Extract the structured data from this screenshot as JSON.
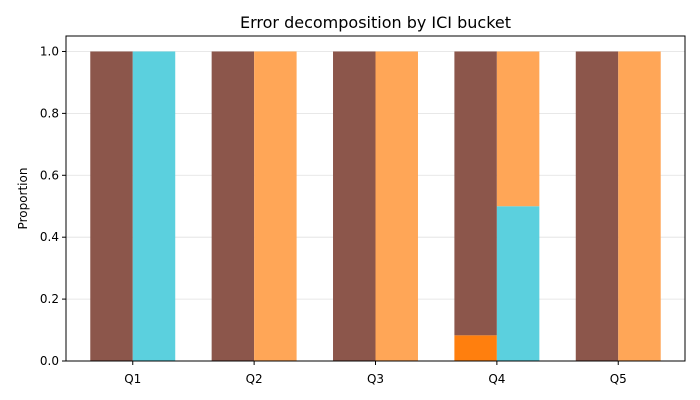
{
  "chart_data": {
    "type": "bar",
    "stacked": true,
    "title": "Error decomposition by ICI bucket",
    "xlabel": "",
    "ylabel": "Proportion",
    "categories": [
      "Q1",
      "Q2",
      "Q3",
      "Q4",
      "Q5"
    ],
    "ylim": [
      0,
      1.05
    ],
    "yticks": [
      0.0,
      0.2,
      0.4,
      0.6,
      0.8,
      1.0
    ],
    "ytick_labels": [
      "0.0",
      "0.2",
      "0.4",
      "0.6",
      "0.8",
      "1.0"
    ],
    "grid": true,
    "legend": null,
    "groups": [
      {
        "position": "left",
        "segments": [
          {
            "color": "#ff7f0e",
            "values": [
              0,
              0,
              0,
              0.083,
              0
            ]
          },
          {
            "color": "#8c564b",
            "values": [
              1.0,
              1.0,
              1.0,
              0.917,
              1.0
            ]
          }
        ]
      },
      {
        "position": "right",
        "segments": [
          {
            "color": "#5bd0de",
            "values": [
              1.0,
              0,
              0,
              0.5,
              0
            ]
          },
          {
            "color": "#ffa657",
            "values": [
              0,
              1.0,
              1.0,
              0.5,
              1.0
            ]
          }
        ]
      }
    ]
  }
}
